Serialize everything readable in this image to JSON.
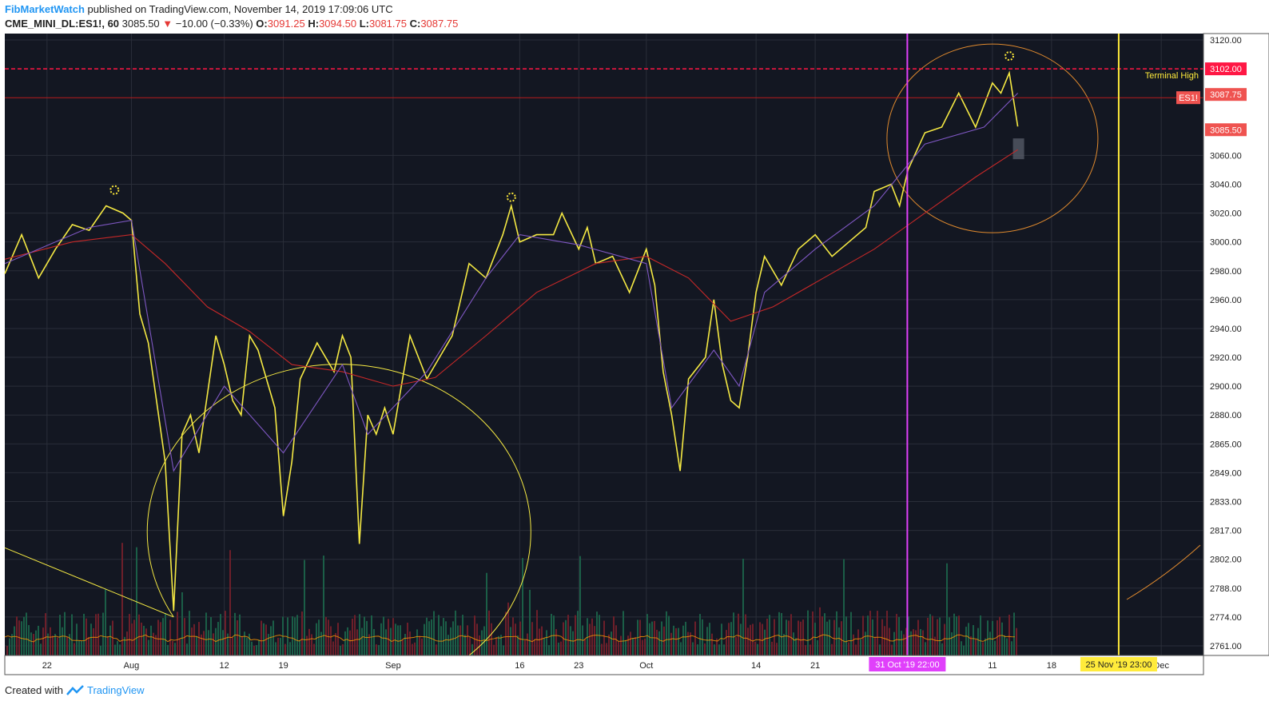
{
  "header": {
    "author": "FibMarketWatch",
    "published_text": "published on TradingView.com, November 14, 2019 17:09:06 UTC",
    "symbol": "CME_MINI_DL:ES1!, 60",
    "last_price": "3085.50",
    "change": "−10.00 (−0.33%)",
    "o_label": "O:",
    "o_value": "3091.25",
    "h_label": "H:",
    "h_value": "3094.50",
    "l_label": "L:",
    "l_value": "3081.75",
    "c_label": "C:",
    "c_value": "3087.75"
  },
  "footer": {
    "created_with": "Created with",
    "brand": "TradingView"
  },
  "colors": {
    "background": "#131722",
    "price_line": "#f5e943",
    "ma_slow": "#c62828",
    "ma_fast": "#7e57c2",
    "vline_magenta": "#e040fb",
    "vline_yellow": "#ffeb3b",
    "terminal_high": "#ff1744",
    "volume_up": "#1b5e47",
    "volume_down": "#6d1f2a"
  },
  "chart_data": {
    "type": "line",
    "symbol": "ES1!",
    "timeframe": "60",
    "y_axis": {
      "ticks": [
        "3120.00",
        "3102.00",
        "3087.75",
        "3085.50",
        "3060.00",
        "3040.00",
        "3020.00",
        "3000.00",
        "2980.00",
        "2960.00",
        "2940.00",
        "2920.00",
        "2900.00",
        "2880.00",
        "2865.00",
        "2849.00",
        "2833.00",
        "2817.00",
        "2802.00",
        "2788.00",
        "2774.00",
        "2761.00"
      ],
      "tick_values": [
        3120,
        3102,
        3087.75,
        3085.5,
        3060,
        3040,
        3020,
        3000,
        2980,
        2960,
        2940,
        2920,
        2900,
        2880,
        2865,
        2849,
        2833,
        2817,
        2802,
        2788,
        2774,
        2761
      ],
      "ylim": [
        2761,
        3120
      ]
    },
    "x_axis": {
      "ticks": [
        "22",
        "Aug",
        "12",
        "19",
        "Sep",
        "16",
        "23",
        "Oct",
        "14",
        "21",
        "11",
        "18",
        "Dec"
      ],
      "tick_dates": [
        "2019-07-22",
        "2019-08-01",
        "2019-08-12",
        "2019-08-19",
        "2019-09-01",
        "2019-09-16",
        "2019-09-23",
        "2019-10-01",
        "2019-10-14",
        "2019-10-21",
        "2019-11-11",
        "2019-11-18",
        "2019-12-01"
      ],
      "xlim": [
        "2019-07-17",
        "2019-12-06"
      ]
    },
    "series": [
      {
        "role": "price",
        "points": [
          [
            "2019-07-17",
            2978
          ],
          [
            "2019-07-19",
            3005
          ],
          [
            "2019-07-21",
            2975
          ],
          [
            "2019-07-23",
            2995
          ],
          [
            "2019-07-25",
            3012
          ],
          [
            "2019-07-27",
            3008
          ],
          [
            "2019-07-29",
            3025
          ],
          [
            "2019-07-31",
            3020
          ],
          [
            "2019-08-01",
            3015
          ],
          [
            "2019-08-02",
            2950
          ],
          [
            "2019-08-03",
            2930
          ],
          [
            "2019-08-05",
            2855
          ],
          [
            "2019-08-06",
            2777
          ],
          [
            "2019-08-07",
            2870
          ],
          [
            "2019-08-08",
            2880
          ],
          [
            "2019-08-09",
            2860
          ],
          [
            "2019-08-11",
            2935
          ],
          [
            "2019-08-12",
            2915
          ],
          [
            "2019-08-13",
            2890
          ],
          [
            "2019-08-14",
            2880
          ],
          [
            "2019-08-15",
            2935
          ],
          [
            "2019-08-16",
            2925
          ],
          [
            "2019-08-18",
            2885
          ],
          [
            "2019-08-19",
            2825
          ],
          [
            "2019-08-20",
            2855
          ],
          [
            "2019-08-21",
            2905
          ],
          [
            "2019-08-23",
            2930
          ],
          [
            "2019-08-25",
            2910
          ],
          [
            "2019-08-26",
            2935
          ],
          [
            "2019-08-27",
            2920
          ],
          [
            "2019-08-28",
            2810
          ],
          [
            "2019-08-29",
            2880
          ],
          [
            "2019-08-30",
            2870
          ],
          [
            "2019-08-31",
            2885
          ],
          [
            "2019-09-01",
            2870
          ],
          [
            "2019-09-03",
            2935
          ],
          [
            "2019-09-04",
            2920
          ],
          [
            "2019-09-05",
            2905
          ],
          [
            "2019-09-06",
            2915
          ],
          [
            "2019-09-08",
            2935
          ],
          [
            "2019-09-10",
            2985
          ],
          [
            "2019-09-12",
            2975
          ],
          [
            "2019-09-14",
            3005
          ],
          [
            "2019-09-15",
            3025
          ],
          [
            "2019-09-16",
            3000
          ],
          [
            "2019-09-18",
            3005
          ],
          [
            "2019-09-20",
            3005
          ],
          [
            "2019-09-21",
            3020
          ],
          [
            "2019-09-23",
            2995
          ],
          [
            "2019-09-24",
            3010
          ],
          [
            "2019-09-25",
            2985
          ],
          [
            "2019-09-27",
            2990
          ],
          [
            "2019-09-29",
            2965
          ],
          [
            "2019-10-01",
            2995
          ],
          [
            "2019-10-02",
            2970
          ],
          [
            "2019-10-03",
            2910
          ],
          [
            "2019-10-04",
            2880
          ],
          [
            "2019-10-05",
            2850
          ],
          [
            "2019-10-06",
            2905
          ],
          [
            "2019-10-08",
            2920
          ],
          [
            "2019-10-09",
            2960
          ],
          [
            "2019-10-10",
            2915
          ],
          [
            "2019-10-11",
            2890
          ],
          [
            "2019-10-12",
            2885
          ],
          [
            "2019-10-13",
            2920
          ],
          [
            "2019-10-14",
            2965
          ],
          [
            "2019-10-15",
            2990
          ],
          [
            "2019-10-17",
            2970
          ],
          [
            "2019-10-19",
            2995
          ],
          [
            "2019-10-21",
            3005
          ],
          [
            "2019-10-23",
            2990
          ],
          [
            "2019-10-25",
            3000
          ],
          [
            "2019-10-27",
            3010
          ],
          [
            "2019-10-28",
            3035
          ],
          [
            "2019-10-30",
            3040
          ],
          [
            "2019-10-31",
            3025
          ],
          [
            "2019-11-01",
            3050
          ],
          [
            "2019-11-03",
            3080
          ],
          [
            "2019-11-05",
            3085
          ],
          [
            "2019-11-07",
            3090
          ],
          [
            "2019-11-09",
            3085
          ],
          [
            "2019-11-11",
            3095
          ],
          [
            "2019-11-12",
            3090
          ],
          [
            "2019-11-13",
            3100
          ],
          [
            "2019-11-14",
            3085.5
          ]
        ]
      },
      {
        "role": "ma_slow",
        "points": [
          [
            "2019-07-17",
            2988
          ],
          [
            "2019-07-25",
            3000
          ],
          [
            "2019-08-01",
            3005
          ],
          [
            "2019-08-05",
            2985
          ],
          [
            "2019-08-10",
            2955
          ],
          [
            "2019-08-15",
            2938
          ],
          [
            "2019-08-20",
            2915
          ],
          [
            "2019-08-26",
            2910
          ],
          [
            "2019-09-01",
            2900
          ],
          [
            "2019-09-06",
            2906
          ],
          [
            "2019-09-12",
            2935
          ],
          [
            "2019-09-18",
            2965
          ],
          [
            "2019-09-25",
            2985
          ],
          [
            "2019-10-01",
            2990
          ],
          [
            "2019-10-06",
            2975
          ],
          [
            "2019-10-11",
            2945
          ],
          [
            "2019-10-16",
            2955
          ],
          [
            "2019-10-22",
            2975
          ],
          [
            "2019-10-28",
            2995
          ],
          [
            "2019-11-03",
            3020
          ],
          [
            "2019-11-09",
            3045
          ],
          [
            "2019-11-14",
            3065
          ]
        ]
      },
      {
        "role": "ma_fast",
        "points": [
          [
            "2019-07-17",
            2985
          ],
          [
            "2019-07-27",
            3010
          ],
          [
            "2019-08-01",
            3015
          ],
          [
            "2019-08-06",
            2850
          ],
          [
            "2019-08-12",
            2900
          ],
          [
            "2019-08-19",
            2860
          ],
          [
            "2019-08-26",
            2915
          ],
          [
            "2019-08-29",
            2870
          ],
          [
            "2019-09-05",
            2910
          ],
          [
            "2019-09-12",
            2975
          ],
          [
            "2019-09-16",
            3005
          ],
          [
            "2019-09-23",
            2998
          ],
          [
            "2019-10-01",
            2985
          ],
          [
            "2019-10-04",
            2885
          ],
          [
            "2019-10-09",
            2925
          ],
          [
            "2019-10-12",
            2900
          ],
          [
            "2019-10-15",
            2965
          ],
          [
            "2019-10-21",
            2995
          ],
          [
            "2019-10-28",
            3025
          ],
          [
            "2019-11-03",
            3070
          ],
          [
            "2019-11-10",
            3085
          ],
          [
            "2019-11-14",
            3090
          ]
        ]
      }
    ],
    "horizontal_lines": [
      {
        "value": 3102,
        "label": "Terminal High",
        "style": "dashed",
        "color": "#ff1744"
      },
      {
        "value": 3087.75,
        "label": "ES1!",
        "style": "solid",
        "color": "#b71c1c"
      }
    ],
    "vertical_lines": [
      {
        "x": "2019-10-31 22:00",
        "label": "31 Oct '19   22:00",
        "color": "#e040fb"
      },
      {
        "x": "2019-11-25 23:00",
        "label": "25 Nov '19   23:00",
        "color": "#ffeb3b"
      }
    ],
    "price_labels": [
      {
        "value": 3102,
        "text": "3102.00",
        "bg": "#ff1744"
      },
      {
        "value": 3087.75,
        "text": "3087.75",
        "bg": "#ef5350"
      },
      {
        "value": 3085.5,
        "text": "3085.50",
        "bg": "#ef5350"
      }
    ],
    "grid": true
  }
}
